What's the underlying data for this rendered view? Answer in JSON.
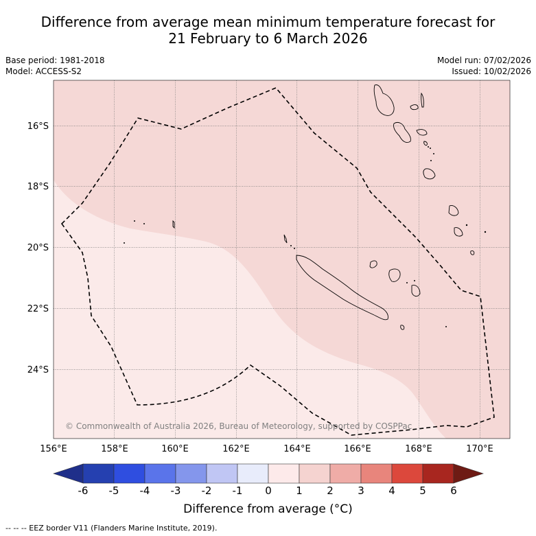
{
  "header": {
    "title_line1": "Difference from average mean minimum temperature forecast for",
    "title_line2": "21 February to 6 March 2026",
    "base_period": "Base period: 1981-2018",
    "model": "Model: ACCESS-S2",
    "model_run": "Model run: 07/02/2026",
    "issued": "Issued: 10/02/2026"
  },
  "map": {
    "lat_labels": [
      "16°S",
      "18°S",
      "20°S",
      "22°S",
      "24°S"
    ],
    "lon_labels": [
      "156°E",
      "158°E",
      "160°E",
      "162°E",
      "164°E",
      "166°E",
      "168°E",
      "170°E"
    ],
    "copyright": "© Commonwealth of Australia 2026, Bureau of Meteorology, supported by COSPPac",
    "zone_colors": {
      "light": "#fbeae9",
      "medium": "#f5d8d6"
    }
  },
  "colorbar": {
    "ticks": [
      "-6",
      "-5",
      "-4",
      "-3",
      "-2",
      "-1",
      "0",
      "1",
      "2",
      "3",
      "4",
      "5",
      "6"
    ],
    "colors": [
      "#1f2f8a",
      "#2540b0",
      "#2f4ee0",
      "#5a74ea",
      "#8496ec",
      "#c0c6f4",
      "#e8ecfb",
      "#fdeaea",
      "#f5d3d0",
      "#efaca7",
      "#e8857c",
      "#dc483c",
      "#a8261f",
      "#6e1b14"
    ],
    "label": "Difference from average (°C)"
  },
  "footnote": "--  --  -- EEZ border V11 (Flanders Marine Institute, 2019)."
}
